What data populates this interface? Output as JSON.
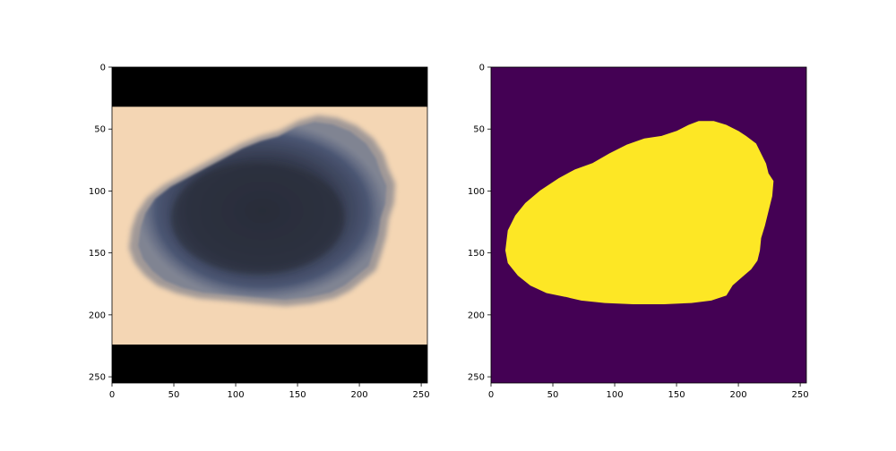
{
  "chart_data": [
    {
      "type": "image",
      "content": "dermoscopy-lesion",
      "xlim": [
        0,
        255
      ],
      "ylim": [
        255,
        0
      ],
      "xticks": [
        0,
        50,
        100,
        150,
        200,
        250
      ],
      "yticks": [
        0,
        50,
        100,
        150,
        200,
        250
      ],
      "bands": [
        {
          "y_range": [
            0,
            32
          ],
          "color": "#000000"
        },
        {
          "y_range": [
            224,
            255
          ],
          "color": "#000000"
        }
      ],
      "skin_color": "#f4d6b4",
      "lesion_color": "#3a4256"
    },
    {
      "type": "heatmap",
      "content": "segmentation-mask",
      "colormap": "viridis",
      "xlim": [
        0,
        255
      ],
      "ylim": [
        255,
        0
      ],
      "xticks": [
        0,
        50,
        100,
        150,
        200,
        250
      ],
      "yticks": [
        0,
        50,
        100,
        150,
        200,
        250
      ],
      "background_color": "#440154",
      "foreground_color": "#fde725",
      "mask_outline": [
        [
          168,
          44
        ],
        [
          180,
          44
        ],
        [
          190,
          47
        ],
        [
          200,
          52
        ],
        [
          206,
          56
        ],
        [
          214,
          62
        ],
        [
          218,
          70
        ],
        [
          222,
          78
        ],
        [
          224,
          86
        ],
        [
          228,
          92
        ],
        [
          227,
          104
        ],
        [
          224,
          116
        ],
        [
          221,
          128
        ],
        [
          218,
          138
        ],
        [
          217,
          148
        ],
        [
          215,
          156
        ],
        [
          210,
          163
        ],
        [
          203,
          169
        ],
        [
          195,
          176
        ],
        [
          190,
          184
        ],
        [
          178,
          188
        ],
        [
          162,
          190
        ],
        [
          140,
          191
        ],
        [
          115,
          191
        ],
        [
          92,
          190
        ],
        [
          73,
          188
        ],
        [
          60,
          185
        ],
        [
          45,
          182
        ],
        [
          32,
          176
        ],
        [
          22,
          168
        ],
        [
          14,
          158
        ],
        [
          12,
          148
        ],
        [
          14,
          132
        ],
        [
          20,
          120
        ],
        [
          28,
          110
        ],
        [
          40,
          100
        ],
        [
          55,
          90
        ],
        [
          68,
          83
        ],
        [
          82,
          78
        ],
        [
          96,
          70
        ],
        [
          110,
          63
        ],
        [
          124,
          58
        ],
        [
          138,
          56
        ],
        [
          150,
          52
        ],
        [
          160,
          47
        ]
      ]
    }
  ]
}
